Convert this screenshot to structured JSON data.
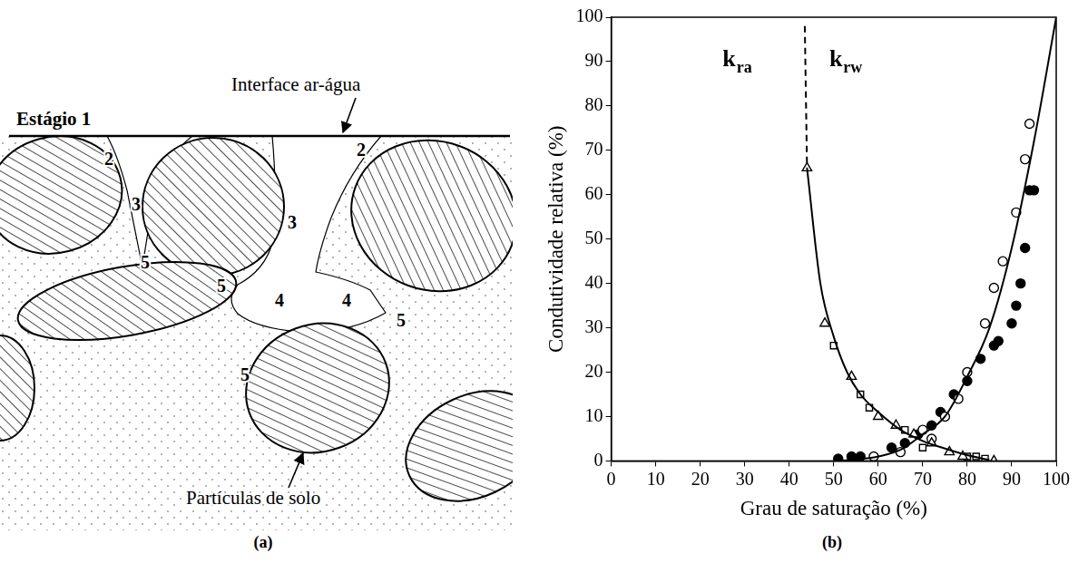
{
  "diagram": {
    "panel": "(a)",
    "stage": "Estágio 1",
    "interface_label": "Interface ar-água",
    "particles_label": "Partículas de solo",
    "zone_labels": [
      "2",
      "2",
      "3",
      "3",
      "4",
      "4",
      "5",
      "5",
      "5",
      "5"
    ]
  },
  "chart_data": {
    "panel": "(b)",
    "type": "scatter",
    "x_label": "Grau de saturação (%)",
    "y_label": "Condutividade relativa (%)",
    "xlim": [
      0,
      100
    ],
    "ylim": [
      0,
      100
    ],
    "xticks": [
      0,
      10,
      20,
      30,
      40,
      50,
      60,
      70,
      80,
      90,
      100
    ],
    "yticks": [
      0,
      10,
      20,
      30,
      40,
      50,
      60,
      70,
      80,
      90,
      100
    ],
    "grid": false,
    "annotations": [
      {
        "text": "k",
        "subscript": "ra",
        "x": 25,
        "y": 89
      },
      {
        "text": "k",
        "subscript": "rw",
        "x": 49,
        "y": 89
      }
    ],
    "series": [
      {
        "type": "line",
        "line_style": "solid",
        "color": "#000000",
        "x": [
          44,
          47,
          50,
          53,
          56,
          60,
          65,
          70,
          75,
          80,
          85
        ],
        "values": [
          66,
          40,
          28,
          20,
          15,
          11,
          7,
          4.5,
          2.8,
          1.3,
          0.2
        ]
      },
      {
        "type": "line",
        "line_style": "dashed",
        "color": "#000000",
        "x": [
          43.5,
          44
        ],
        "values": [
          98,
          66
        ]
      },
      {
        "type": "line",
        "line_style": "solid",
        "color": "#000000",
        "x": [
          50,
          55,
          60,
          65,
          70,
          75,
          80,
          85,
          90,
          95,
          100
        ],
        "values": [
          0,
          0.3,
          1,
          2.5,
          6,
          10,
          19,
          30,
          48,
          72,
          100
        ]
      },
      {
        "type": "scatter",
        "marker": "triangle_open",
        "color": "#000000",
        "x": [
          44,
          48,
          54,
          60,
          64,
          68,
          72,
          76,
          79,
          86
        ],
        "values": [
          66,
          31,
          19,
          10,
          8,
          6,
          4,
          2,
          1,
          0
        ]
      },
      {
        "type": "scatter",
        "marker": "square_open",
        "color": "#000000",
        "x": [
          50,
          56,
          58,
          66,
          70,
          80,
          82,
          84
        ],
        "values": [
          26,
          15,
          12,
          7,
          3,
          1,
          1,
          0.5
        ]
      },
      {
        "type": "scatter",
        "marker": "circle_open",
        "color": "#000000",
        "x": [
          59,
          65,
          70,
          72,
          75,
          78,
          80,
          84,
          86,
          88,
          91,
          93,
          94
        ],
        "values": [
          1,
          2,
          7,
          5,
          10,
          14,
          20,
          31,
          39,
          45,
          56,
          68,
          76
        ]
      },
      {
        "type": "scatter",
        "marker": "circle_filled",
        "color": "#000000",
        "x": [
          51,
          54,
          56,
          63,
          66,
          69,
          72,
          74,
          77,
          80,
          83,
          86,
          87,
          90,
          91,
          92,
          93,
          94,
          95
        ],
        "values": [
          0.5,
          1,
          1,
          3,
          4,
          6,
          8,
          11,
          15,
          18,
          23,
          26,
          27,
          31,
          35,
          40,
          48,
          61,
          61
        ]
      }
    ]
  }
}
